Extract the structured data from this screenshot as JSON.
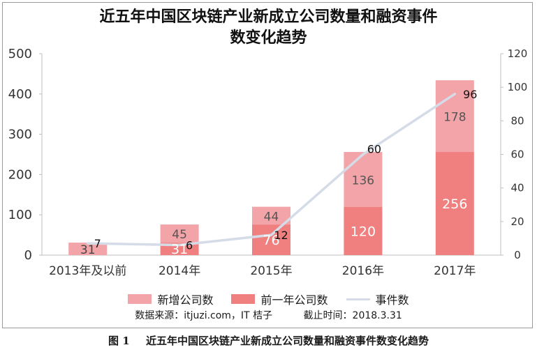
{
  "title_line1": "近五年中国区块链产业新成立公司数量和融资事件",
  "title_line2": "数变化趋势",
  "legend": {
    "new": "新增公司数",
    "prev": "前一年公司数",
    "events": "事件数"
  },
  "source_text": "数据来源：itjuzi.com，IT 桔子",
  "cutoff_text": "截止时间：2018.3.31",
  "caption_num": "图 1",
  "caption_text": "近五年中国区块链产业新成立公司数量和融资事件数变化趋势",
  "colors": {
    "new": "#f2a4a8",
    "prev": "#f08080",
    "events": "#d5dce8",
    "axis": "#bfbfbf"
  },
  "chart_data": {
    "type": "bar",
    "stacked": true,
    "categories": [
      "2013年及以前",
      "2014年",
      "2015年",
      "2016年",
      "2017年"
    ],
    "series": [
      {
        "name": "前一年公司数",
        "type": "bar",
        "axis": "left",
        "values": [
          0,
          31,
          76,
          120,
          256
        ],
        "labels": [
          "",
          "31",
          "76",
          "120",
          "256"
        ]
      },
      {
        "name": "新增公司数",
        "type": "bar",
        "axis": "left",
        "values": [
          31,
          45,
          44,
          136,
          178
        ],
        "labels": [
          "31",
          "45",
          "44",
          "136",
          "178"
        ]
      },
      {
        "name": "事件数",
        "type": "line",
        "axis": "right",
        "values": [
          7,
          6,
          12,
          60,
          96
        ],
        "labels": [
          "7",
          "6",
          "12",
          "60",
          "96"
        ]
      }
    ],
    "y_left": {
      "min": 0,
      "max": 500,
      "ticks": [
        "0",
        "100",
        "200",
        "300",
        "400",
        "500"
      ]
    },
    "y_right": {
      "min": 0,
      "max": 120,
      "ticks": [
        "0",
        "20",
        "40",
        "60",
        "80",
        "100",
        "120"
      ]
    },
    "grid": false,
    "legend_position": "bottom"
  }
}
